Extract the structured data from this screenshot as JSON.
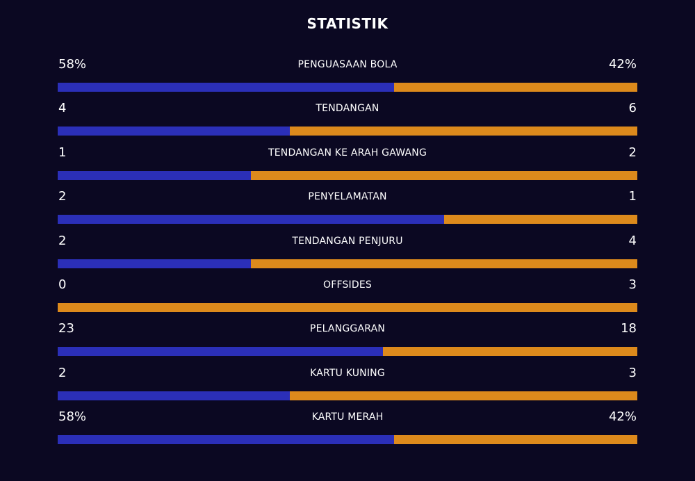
{
  "title": "STATISTIK",
  "colors": {
    "home": "#2b2fb8",
    "away": "#dd8a1c",
    "background": "#0b0822"
  },
  "stats": [
    {
      "label": "PENGUASAAN BOLA",
      "home": "58%",
      "away": "42%",
      "home_share": 0.58
    },
    {
      "label": "TENDANGAN",
      "home": "4",
      "away": "6",
      "home_share": 0.4
    },
    {
      "label": "TENDANGAN KE ARAH GAWANG",
      "home": "1",
      "away": "2",
      "home_share": 0.333
    },
    {
      "label": "PENYELAMATAN",
      "home": "2",
      "away": "1",
      "home_share": 0.667
    },
    {
      "label": "TENDANGAN PENJURU",
      "home": "2",
      "away": "4",
      "home_share": 0.333
    },
    {
      "label": "OFFSIDES",
      "home": "0",
      "away": "3",
      "home_share": 0.0
    },
    {
      "label": "PELANGGARAN",
      "home": "23",
      "away": "18",
      "home_share": 0.561
    },
    {
      "label": "KARTU KUNING",
      "home": "2",
      "away": "3",
      "home_share": 0.4
    },
    {
      "label": "KARTU MERAH",
      "home": "58%",
      "away": "42%",
      "home_share": 0.58
    }
  ]
}
